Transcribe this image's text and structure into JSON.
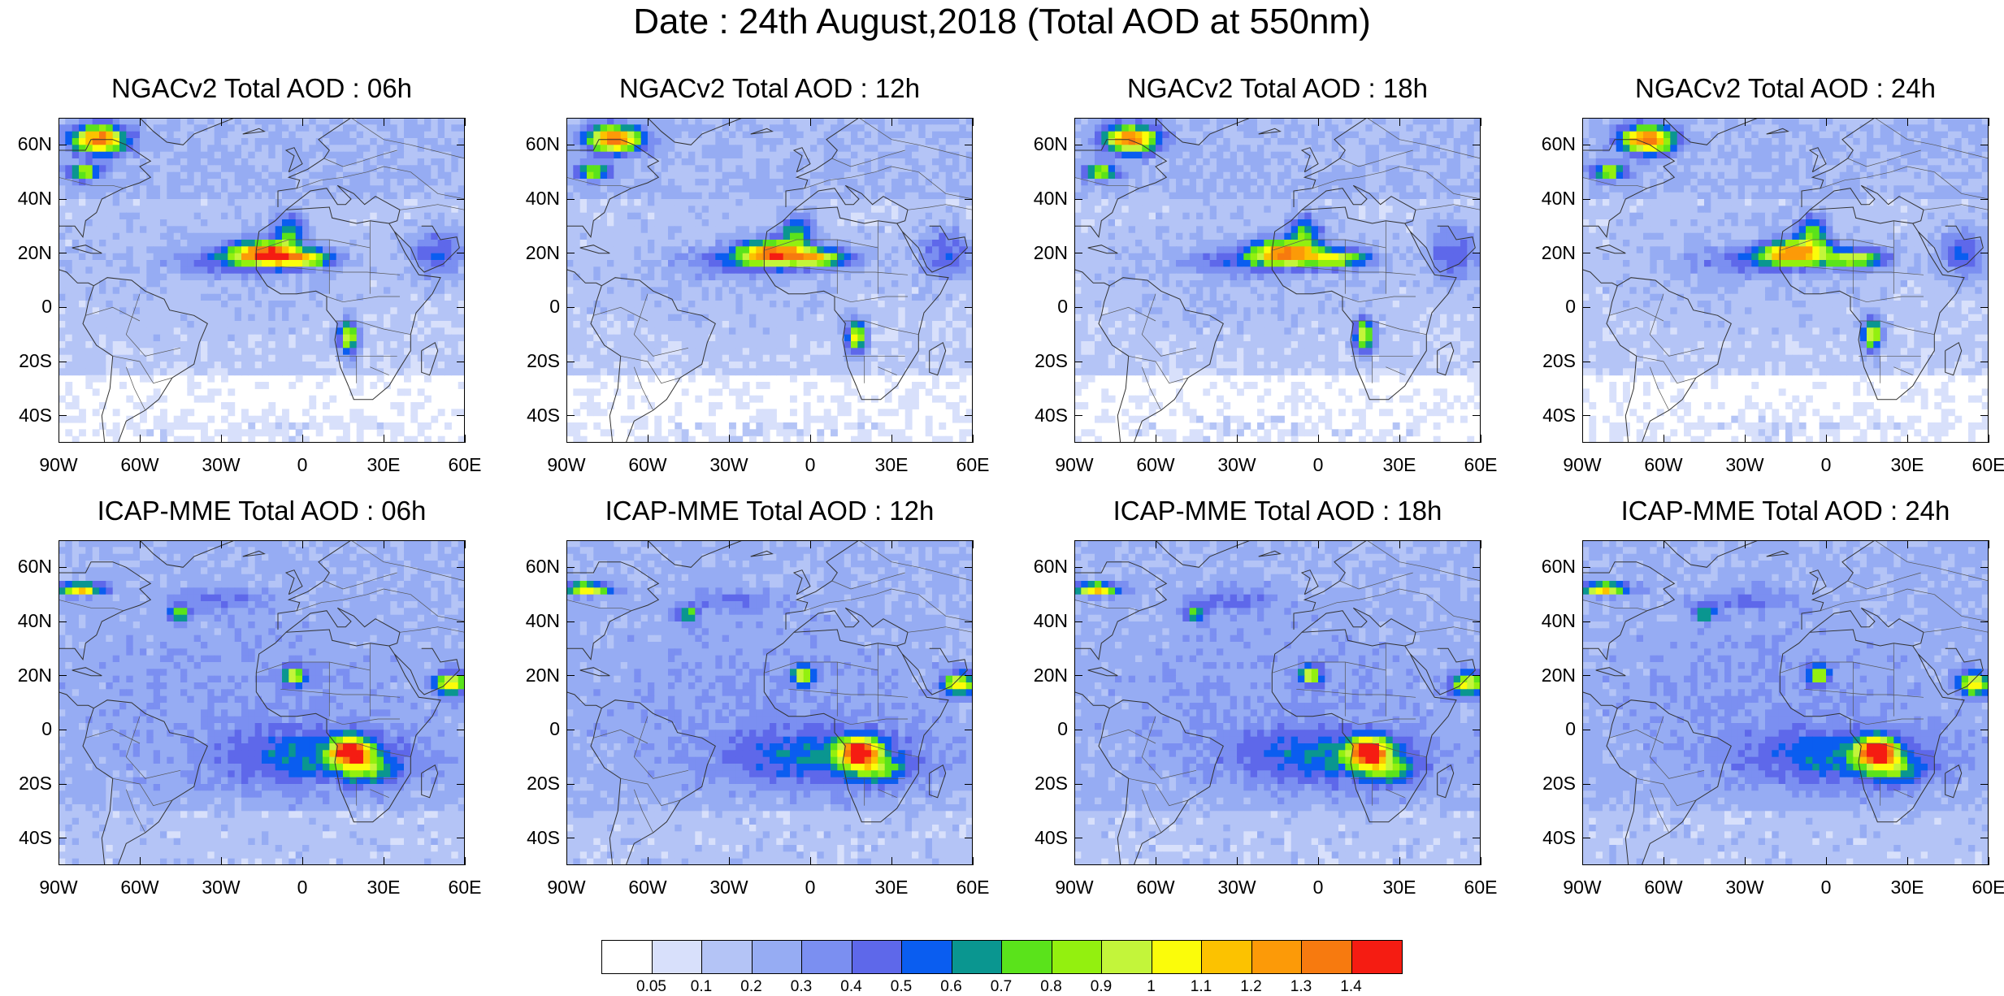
{
  "main_title": "Date : 24th August,2018 (Total AOD at 550nm)",
  "panels": [
    {
      "title": "NGACv2 Total AOD : 06h",
      "model": "ngac",
      "hour": 6
    },
    {
      "title": "NGACv2 Total AOD : 12h",
      "model": "ngac",
      "hour": 12
    },
    {
      "title": "NGACv2 Total AOD : 18h",
      "model": "ngac",
      "hour": 18
    },
    {
      "title": "NGACv2 Total AOD : 24h",
      "model": "ngac",
      "hour": 24
    },
    {
      "title": "ICAP-MME Total AOD : 06h",
      "model": "icap",
      "hour": 6
    },
    {
      "title": "ICAP-MME Total AOD : 12h",
      "model": "icap",
      "hour": 12
    },
    {
      "title": "ICAP-MME Total AOD : 18h",
      "model": "icap",
      "hour": 18
    },
    {
      "title": "ICAP-MME Total AOD : 24h",
      "model": "icap",
      "hour": 24
    }
  ],
  "lat_labels": [
    "60N",
    "40N",
    "20N",
    "0",
    "20S",
    "40S"
  ],
  "lon_labels": [
    "90W",
    "60W",
    "30W",
    "0",
    "30E",
    "60E"
  ],
  "colorbar": {
    "labels": [
      "0.05",
      "0.1",
      "0.2",
      "0.3",
      "0.4",
      "0.5",
      "0.6",
      "0.7",
      "0.8",
      "0.9",
      "1",
      "1.1",
      "1.2",
      "1.3",
      "1.4"
    ],
    "colors": [
      "#ffffff",
      "#d8e0fb",
      "#b4c4f6",
      "#96acf3",
      "#7b8ff1",
      "#5e68ea",
      "#0a5df0",
      "#0a9690",
      "#5ae31b",
      "#93f00f",
      "#c3f53a",
      "#fbfc0a",
      "#fcc200",
      "#fc9a08",
      "#f77a0f",
      "#f51c12"
    ]
  }
}
